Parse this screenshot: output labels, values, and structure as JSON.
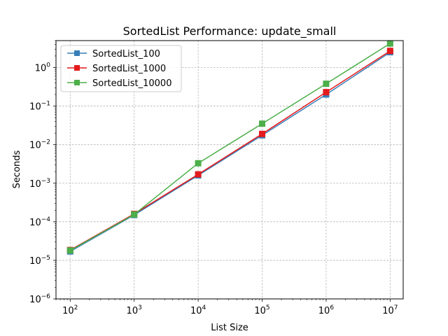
{
  "chart_data": {
    "type": "line",
    "title": "SortedList Performance: update_small",
    "xlabel": "List Size",
    "ylabel": "Seconds",
    "xscale": "log",
    "yscale": "log",
    "xlim": [
      60,
      16000000
    ],
    "ylim": [
      1e-06,
      5
    ],
    "x": [
      100,
      1000,
      10000,
      100000,
      1000000,
      10000000
    ],
    "x_tick_labels": [
      {
        "value": 100,
        "base": "10",
        "exp": "2"
      },
      {
        "value": 1000,
        "base": "10",
        "exp": "3"
      },
      {
        "value": 10000,
        "base": "10",
        "exp": "4"
      },
      {
        "value": 100000,
        "base": "10",
        "exp": "5"
      },
      {
        "value": 1000000,
        "base": "10",
        "exp": "6"
      },
      {
        "value": 10000000,
        "base": "10",
        "exp": "7"
      }
    ],
    "y_tick_labels": [
      {
        "value": 1e-06,
        "base": "10",
        "exp": "−6"
      },
      {
        "value": 1e-05,
        "base": "10",
        "exp": "−5"
      },
      {
        "value": 0.0001,
        "base": "10",
        "exp": "−4"
      },
      {
        "value": 0.001,
        "base": "10",
        "exp": "−3"
      },
      {
        "value": 0.01,
        "base": "10",
        "exp": "−2"
      },
      {
        "value": 0.1,
        "base": "10",
        "exp": "−1"
      },
      {
        "value": 1,
        "base": "10",
        "exp": "0"
      }
    ],
    "grid": true,
    "legend_position": "top-left",
    "marker": "square",
    "series": [
      {
        "name": "SortedList_100",
        "color": "#377eb8",
        "values": [
          1.7e-05,
          0.00015,
          0.0016,
          0.0175,
          0.2,
          2.5
        ]
      },
      {
        "name": "SortedList_1000",
        "color": "#e41a1c",
        "values": [
          1.85e-05,
          0.00016,
          0.0017,
          0.019,
          0.23,
          2.7
        ]
      },
      {
        "name": "SortedList_10000",
        "color": "#4daf4a",
        "values": [
          1.8e-05,
          0.000155,
          0.0033,
          0.035,
          0.38,
          4.2
        ]
      }
    ]
  }
}
